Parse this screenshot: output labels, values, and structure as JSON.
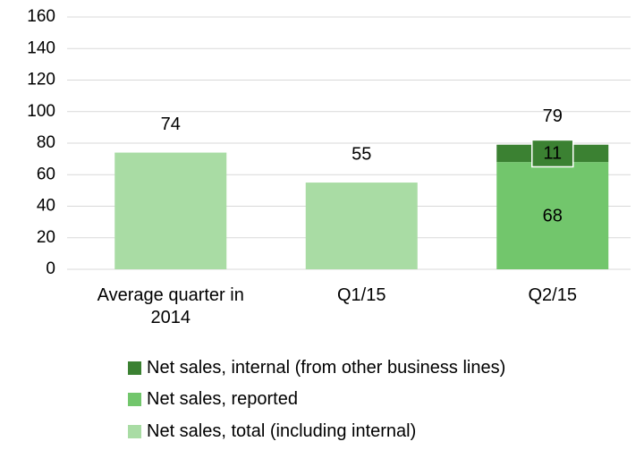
{
  "chart_data": {
    "type": "stacked_bar",
    "categories": [
      "Average quarter in 2014",
      "Q1/15",
      "Q2/15"
    ],
    "series": [
      {
        "name": "Net sales, internal (from other business lines)",
        "color": "#3b8132",
        "values": [
          null,
          null,
          11
        ]
      },
      {
        "name": "Net sales, reported",
        "color": "#72c66c",
        "values": [
          null,
          null,
          68
        ]
      },
      {
        "name": "Net sales, total (including internal)",
        "color": "#a9dca4",
        "values": [
          74,
          55,
          null
        ]
      }
    ],
    "totals": [
      null,
      null,
      79
    ],
    "ylim": [
      0,
      160
    ],
    "yticks": [
      0,
      20,
      40,
      60,
      80,
      100,
      120,
      140,
      160
    ],
    "grid": true,
    "legend": "bottom"
  }
}
